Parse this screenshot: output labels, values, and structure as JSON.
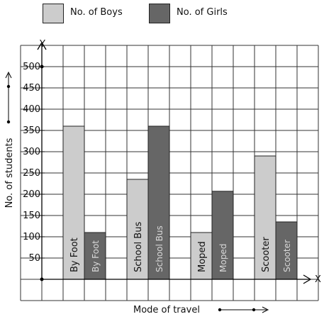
{
  "chart_data": {
    "type": "bar",
    "title": "",
    "xlabel": "Mode of travel",
    "ylabel": "No. of students",
    "x_axis_letter": "X",
    "y_axis_letter": "Y",
    "ylim": [
      0,
      550
    ],
    "yticks": [
      50,
      100,
      150,
      200,
      250,
      300,
      350,
      400,
      450,
      500
    ],
    "ytick_labels": [
      "50",
      "100",
      "150",
      "200",
      "250",
      "300",
      "350",
      "400",
      "450",
      "500"
    ],
    "categories": [
      "By Foot",
      "School Bus",
      "Moped",
      "Scooter"
    ],
    "series": [
      {
        "name": "No. of Boys",
        "color": "#cccccc",
        "values": [
          360,
          235,
          110,
          290
        ]
      },
      {
        "name": "No. of Girls",
        "color": "#666666",
        "values": [
          110,
          360,
          207,
          135
        ]
      }
    ],
    "grid": true,
    "legend_position": "top"
  }
}
